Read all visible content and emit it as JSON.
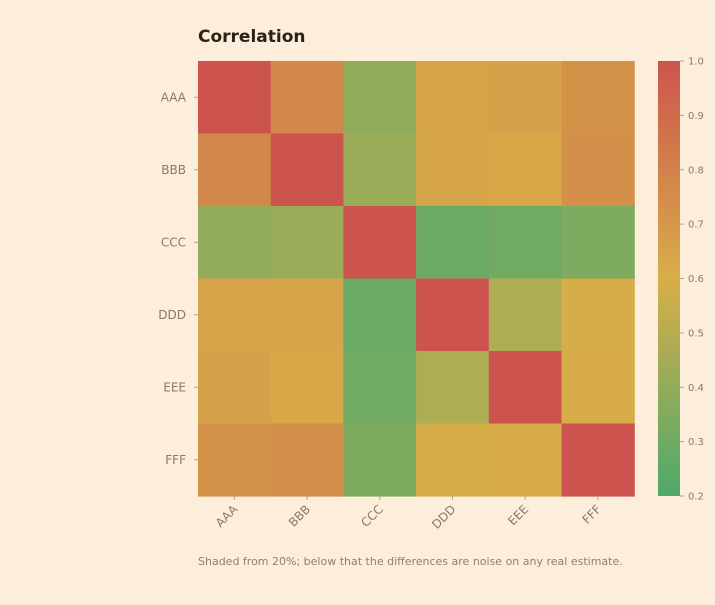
{
  "chart_data": {
    "type": "heatmap",
    "title": "Correlation",
    "categories": [
      "AAA",
      "BBB",
      "CCC",
      "DDD",
      "EEE",
      "FFF"
    ],
    "rows": [
      "AAA",
      "BBB",
      "CCC",
      "DDD",
      "EEE",
      "FFF"
    ],
    "values": [
      [
        1.0,
        0.77,
        0.39,
        0.65,
        0.66,
        0.72
      ],
      [
        0.77,
        1.0,
        0.42,
        0.64,
        0.63,
        0.74
      ],
      [
        0.39,
        0.42,
        1.0,
        0.28,
        0.3,
        0.34
      ],
      [
        0.65,
        0.64,
        0.28,
        1.0,
        0.48,
        0.59
      ],
      [
        0.66,
        0.63,
        0.3,
        0.48,
        1.0,
        0.61
      ],
      [
        0.72,
        0.74,
        0.34,
        0.59,
        0.61,
        1.0
      ]
    ],
    "colorbar": {
      "min": 0.2,
      "max": 1.0,
      "ticks": [
        "0.2",
        "0.3",
        "0.4",
        "0.5",
        "0.6",
        "0.7",
        "0.8",
        "0.9",
        "1.0"
      ],
      "colors": [
        "#4ea96b",
        "#d8ae48",
        "#cd544e"
      ]
    },
    "footnote": "Shaded from 20%; below that the differences are noise on any real estimate."
  }
}
